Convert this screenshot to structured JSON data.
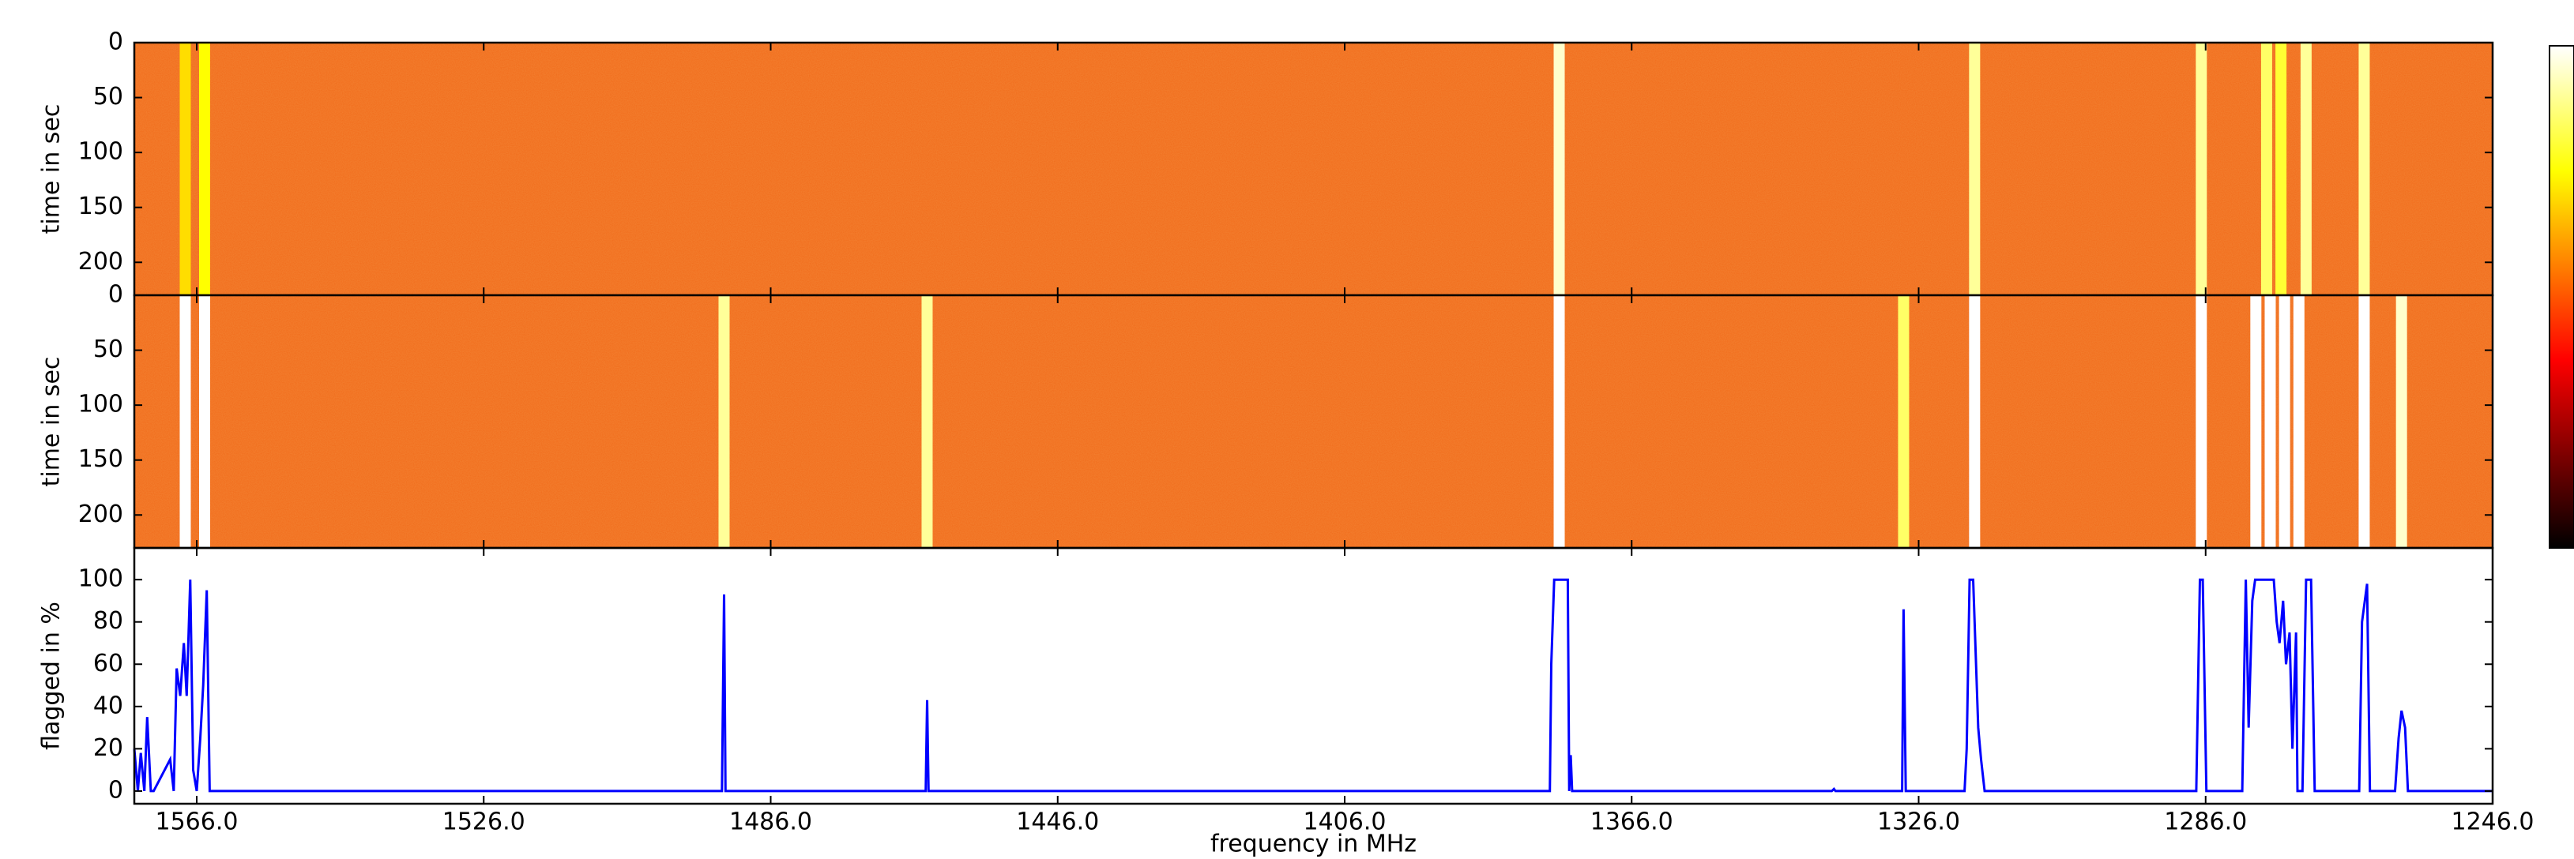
{
  "chart_data": [
    {
      "type": "heatmap",
      "ylabel": "time in sec",
      "color": "#f06a1a",
      "xlim": [
        1574.7,
        1246
      ],
      "xticks": [
        1566,
        1526,
        1486,
        1446,
        1406,
        1366,
        1326,
        1286,
        1246
      ],
      "ylim": [
        230,
        0
      ],
      "yticks": [
        0,
        50,
        100,
        150,
        200
      ],
      "x": [
        1567.6,
        1564.9,
        1376.1,
        1318.2,
        1286.6,
        1277.5,
        1275.5,
        1272.0,
        1263.9
      ],
      "values": [
        0.7,
        0.75,
        0.95,
        0.9,
        0.9,
        0.85,
        0.8,
        0.9,
        0.9
      ]
    },
    {
      "type": "heatmap",
      "ylabel": "time in sec",
      "color": "#f06a1a",
      "xlim": [
        1574.7,
        1246
      ],
      "xticks": [
        1566,
        1526,
        1486,
        1446,
        1406,
        1366,
        1326,
        1286,
        1246
      ],
      "ylim": [
        230,
        0
      ],
      "yticks": [
        0,
        50,
        100,
        150,
        200
      ],
      "x": [
        1567.6,
        1564.9,
        1492.5,
        1464.2,
        1376.1,
        1328.1,
        1318.2,
        1286.6,
        1279,
        1277,
        1275,
        1273,
        1263.9,
        1258.7
      ],
      "values": [
        1,
        1,
        0.9,
        0.9,
        1,
        0.85,
        1,
        1,
        1,
        1,
        1,
        1,
        1,
        0.95
      ]
    },
    {
      "type": "line",
      "ylabel": "flagged in %",
      "xlabel": "frequency in MHz",
      "color": "#0000ff",
      "xlim": [
        1574.7,
        1246
      ],
      "xticks": [
        {
          "value": 1566,
          "label": "1566.0"
        },
        {
          "value": 1526,
          "label": "1526.0"
        },
        {
          "value": 1486,
          "label": "1486.0"
        },
        {
          "value": 1446,
          "label": "1446.0"
        },
        {
          "value": 1406,
          "label": "1406.0"
        },
        {
          "value": 1366,
          "label": "1366.0"
        },
        {
          "value": 1326,
          "label": "1326.0"
        },
        {
          "value": 1286,
          "label": "1286.0"
        },
        {
          "value": 1246,
          "label": "1246.0"
        }
      ],
      "ylim": [
        -6,
        115
      ],
      "yticks": [
        0,
        20,
        40,
        60,
        80,
        100
      ],
      "x": [
        1574.7,
        1574.2,
        1573.8,
        1573.3,
        1572.9,
        1572.4,
        1572.0,
        1569.7,
        1569.2,
        1568.8,
        1568.3,
        1567.8,
        1567.4,
        1566.9,
        1566.5,
        1566.0,
        1565.5,
        1565.1,
        1564.6,
        1564.2,
        1492.8,
        1492.5,
        1492.3,
        1464.4,
        1464.2,
        1464.0,
        1377.4,
        1377.2,
        1376.8,
        1374.9,
        1374.7,
        1374.5,
        1374.3,
        1338.1,
        1337.8,
        1337.6,
        1328.3,
        1328.1,
        1327.8,
        1319.6,
        1319.3,
        1318.9,
        1318.4,
        1317.7,
        1317.3,
        1316.8,
        1287.3,
        1286.8,
        1286.4,
        1285.9,
        1280.9,
        1280.4,
        1280.0,
        1279.5,
        1279.1,
        1276.5,
        1276.1,
        1275.7,
        1275.2,
        1274.8,
        1274.3,
        1273.9,
        1273.4,
        1273.2,
        1272.5,
        1272.0,
        1271.3,
        1270.8,
        1264.6,
        1264.2,
        1263.5,
        1263.1,
        1259.6,
        1259.1,
        1258.7,
        1258.2,
        1257.8,
        1246
      ],
      "values": [
        20,
        0,
        18,
        0,
        35,
        0,
        0,
        15,
        0,
        58,
        45,
        70,
        45,
        100,
        10,
        0,
        25,
        50,
        95,
        0,
        0,
        93,
        0,
        0,
        43,
        0,
        0,
        60,
        100,
        100,
        0,
        17,
        0,
        0,
        1,
        0,
        0,
        86,
        0,
        0,
        20,
        100,
        100,
        30,
        15,
        0,
        0,
        100,
        100,
        0,
        0,
        100,
        30,
        90,
        100,
        100,
        80,
        70,
        90,
        60,
        75,
        20,
        75,
        0,
        0,
        100,
        100,
        0,
        0,
        80,
        98,
        0,
        0,
        25,
        38,
        30,
        0,
        0
      ]
    }
  ]
}
